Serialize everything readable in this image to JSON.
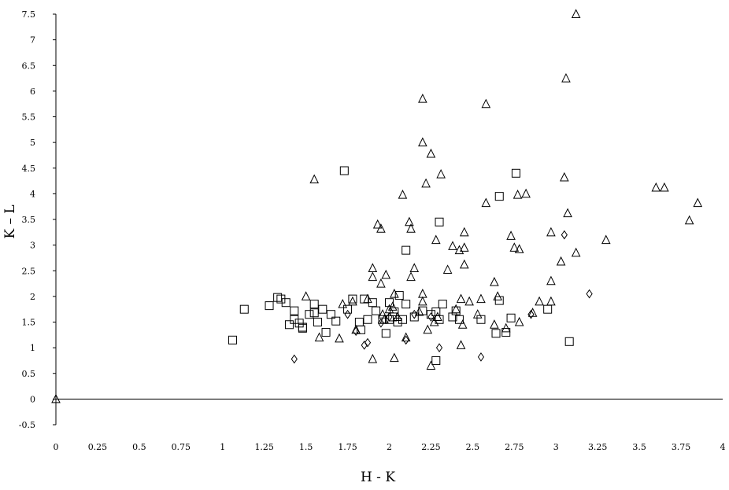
{
  "chart_data": {
    "type": "scatter",
    "title": "",
    "xlabel": "H - K",
    "ylabel": "K – L",
    "xlim": [
      0,
      4
    ],
    "ylim": [
      -0.5,
      7.5
    ],
    "x_ticks": [
      "0",
      "0.25",
      "0.5",
      "0.75",
      "1",
      "1.25",
      "1.5",
      "1.75",
      "2",
      "2.25",
      "2.5",
      "2.75",
      "3",
      "3.25",
      "3.5",
      "3.75",
      "4"
    ],
    "y_ticks": [
      "-0.5",
      "0",
      "0.5",
      "1",
      "1.5",
      "2",
      "2.5",
      "3",
      "3.5",
      "4",
      "4.5",
      "5",
      "5.5",
      "6",
      "6.5",
      "7",
      "7.5"
    ],
    "zero_line": true,
    "grid": false,
    "legend": "none",
    "series": [
      {
        "marker": "triangle",
        "points": [
          [
            0.0,
            0.0
          ],
          [
            1.55,
            4.28
          ],
          [
            1.5,
            2.0
          ],
          [
            1.58,
            1.2
          ],
          [
            1.7,
            1.18
          ],
          [
            1.72,
            1.85
          ],
          [
            1.78,
            1.9
          ],
          [
            1.8,
            1.35
          ],
          [
            1.87,
            1.95
          ],
          [
            1.9,
            2.55
          ],
          [
            1.9,
            2.38
          ],
          [
            1.9,
            0.78
          ],
          [
            1.93,
            3.4
          ],
          [
            1.95,
            3.32
          ],
          [
            1.95,
            2.25
          ],
          [
            1.98,
            2.42
          ],
          [
            1.97,
            1.55
          ],
          [
            1.96,
            1.65
          ],
          [
            2.0,
            1.75
          ],
          [
            2.03,
            2.05
          ],
          [
            2.02,
            1.8
          ],
          [
            2.05,
            1.6
          ],
          [
            2.03,
            0.8
          ],
          [
            2.08,
            3.98
          ],
          [
            2.1,
            1.2
          ],
          [
            2.12,
            3.45
          ],
          [
            2.13,
            3.32
          ],
          [
            2.13,
            2.38
          ],
          [
            2.15,
            2.55
          ],
          [
            2.18,
            1.7
          ],
          [
            2.2,
            5.85
          ],
          [
            2.2,
            5.0
          ],
          [
            2.22,
            4.2
          ],
          [
            2.25,
            4.78
          ],
          [
            2.2,
            2.05
          ],
          [
            2.2,
            1.9
          ],
          [
            2.23,
            1.35
          ],
          [
            2.25,
            0.65
          ],
          [
            2.27,
            1.5
          ],
          [
            2.29,
            1.6
          ],
          [
            2.28,
            3.1
          ],
          [
            2.31,
            4.38
          ],
          [
            2.35,
            2.52
          ],
          [
            2.38,
            2.98
          ],
          [
            2.4,
            1.75
          ],
          [
            2.42,
            2.9
          ],
          [
            2.45,
            2.95
          ],
          [
            2.45,
            3.25
          ],
          [
            2.45,
            2.62
          ],
          [
            2.43,
            1.95
          ],
          [
            2.43,
            1.05
          ],
          [
            2.44,
            1.45
          ],
          [
            2.48,
            1.9
          ],
          [
            2.53,
            1.65
          ],
          [
            2.55,
            1.95
          ],
          [
            2.58,
            5.75
          ],
          [
            2.58,
            3.82
          ],
          [
            2.63,
            2.28
          ],
          [
            2.63,
            1.45
          ],
          [
            2.65,
            2.0
          ],
          [
            2.7,
            1.38
          ],
          [
            2.73,
            3.18
          ],
          [
            2.75,
            2.95
          ],
          [
            2.78,
            2.92
          ],
          [
            2.77,
            3.98
          ],
          [
            2.78,
            1.5
          ],
          [
            2.82,
            4.0
          ],
          [
            2.86,
            1.68
          ],
          [
            2.9,
            1.9
          ],
          [
            2.97,
            3.25
          ],
          [
            2.97,
            2.3
          ],
          [
            2.97,
            1.9
          ],
          [
            3.03,
            2.68
          ],
          [
            3.05,
            4.32
          ],
          [
            3.06,
            6.25
          ],
          [
            3.07,
            3.62
          ],
          [
            3.12,
            7.5
          ],
          [
            3.12,
            2.85
          ],
          [
            3.3,
            3.1
          ],
          [
            3.6,
            4.12
          ],
          [
            3.65,
            4.12
          ],
          [
            3.8,
            3.48
          ],
          [
            3.85,
            3.82
          ]
        ]
      },
      {
        "marker": "square",
        "points": [
          [
            1.06,
            1.15
          ],
          [
            1.13,
            1.75
          ],
          [
            1.28,
            1.82
          ],
          [
            1.33,
            1.98
          ],
          [
            1.35,
            1.95
          ],
          [
            1.38,
            1.88
          ],
          [
            1.4,
            1.45
          ],
          [
            1.43,
            1.72
          ],
          [
            1.43,
            1.55
          ],
          [
            1.46,
            1.48
          ],
          [
            1.48,
            1.4
          ],
          [
            1.48,
            1.38
          ],
          [
            1.52,
            1.65
          ],
          [
            1.55,
            1.68
          ],
          [
            1.55,
            1.85
          ],
          [
            1.57,
            1.5
          ],
          [
            1.6,
            1.75
          ],
          [
            1.62,
            1.3
          ],
          [
            1.65,
            1.65
          ],
          [
            1.68,
            1.52
          ],
          [
            1.73,
            4.45
          ],
          [
            1.75,
            1.75
          ],
          [
            1.78,
            1.95
          ],
          [
            1.82,
            1.5
          ],
          [
            1.83,
            1.35
          ],
          [
            1.85,
            1.95
          ],
          [
            1.87,
            1.55
          ],
          [
            1.9,
            1.88
          ],
          [
            1.92,
            1.72
          ],
          [
            1.96,
            1.55
          ],
          [
            1.98,
            1.28
          ],
          [
            2.0,
            1.55
          ],
          [
            2.02,
            1.6
          ],
          [
            2.0,
            1.88
          ],
          [
            2.03,
            1.7
          ],
          [
            2.05,
            1.5
          ],
          [
            2.06,
            2.02
          ],
          [
            2.08,
            1.55
          ],
          [
            2.1,
            1.85
          ],
          [
            2.1,
            2.9
          ],
          [
            2.15,
            1.6
          ],
          [
            2.2,
            1.72
          ],
          [
            2.25,
            1.65
          ],
          [
            2.28,
            1.7
          ],
          [
            2.28,
            0.75
          ],
          [
            2.3,
            1.55
          ],
          [
            2.3,
            3.45
          ],
          [
            2.32,
            1.85
          ],
          [
            2.38,
            1.6
          ],
          [
            2.4,
            1.72
          ],
          [
            2.42,
            1.55
          ],
          [
            2.55,
            1.55
          ],
          [
            2.64,
            1.28
          ],
          [
            2.66,
            1.92
          ],
          [
            2.66,
            3.95
          ],
          [
            2.7,
            1.3
          ],
          [
            2.73,
            1.58
          ],
          [
            2.76,
            4.4
          ],
          [
            2.95,
            1.75
          ],
          [
            3.08,
            1.12
          ]
        ]
      },
      {
        "marker": "diamond",
        "points": [
          [
            1.43,
            0.78
          ],
          [
            1.75,
            1.65
          ],
          [
            1.8,
            1.32
          ],
          [
            1.85,
            1.05
          ],
          [
            1.87,
            1.1
          ],
          [
            1.95,
            1.48
          ],
          [
            2.0,
            1.6
          ],
          [
            2.1,
            1.15
          ],
          [
            2.15,
            1.65
          ],
          [
            2.25,
            1.6
          ],
          [
            2.3,
            1.0
          ],
          [
            2.55,
            0.82
          ],
          [
            2.85,
            1.65
          ],
          [
            3.05,
            3.2
          ],
          [
            3.2,
            2.05
          ]
        ]
      }
    ]
  }
}
